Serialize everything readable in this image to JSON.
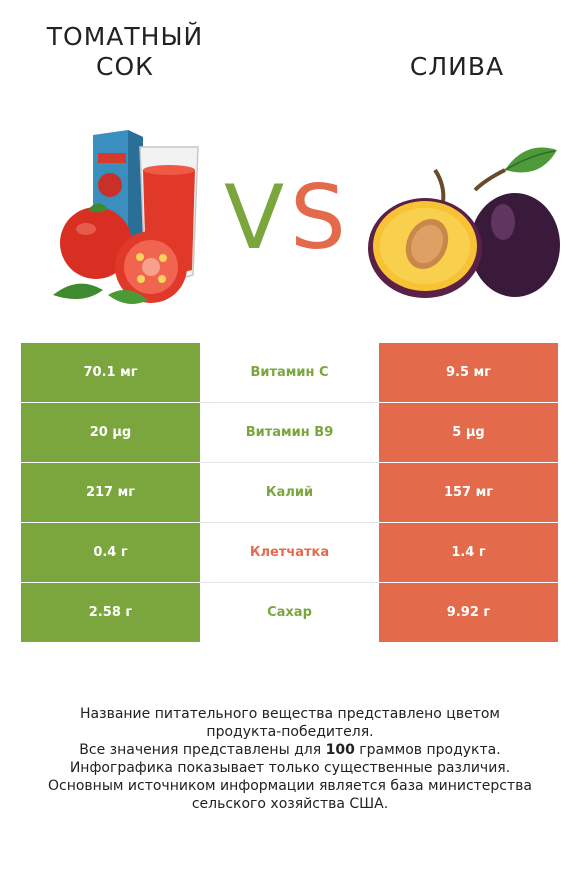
{
  "header": {
    "left_title_line1": "ТОМАТНЫЙ",
    "left_title_line2": "СОК",
    "right_title": "СЛИВА",
    "vs_text": "VS",
    "vs_colors": {
      "v": "#7aa63d",
      "s": "#e36b4c"
    }
  },
  "colors": {
    "winner_left": "#7aa63d",
    "winner_right": "#e36b4c"
  },
  "rows": [
    {
      "left": "70.1 мг",
      "name": "Витамин C",
      "right": "9.5 мг",
      "winner": "left"
    },
    {
      "left": "20 µg",
      "name": "Витамин B9",
      "right": "5 µg",
      "winner": "left"
    },
    {
      "left": "217 мг",
      "name": "Калий",
      "right": "157 мг",
      "winner": "left"
    },
    {
      "left": "0.4 г",
      "name": "Клетчатка",
      "right": "1.4 г",
      "winner": "right"
    },
    {
      "left": "2.58 г",
      "name": "Сахар",
      "right": "9.92 г",
      "winner": "left"
    }
  ],
  "footnote": {
    "line1": "Название питательного вещества представлено цветом",
    "line2": "продукта-победителя.",
    "line3_prefix": "Все значения представлены для ",
    "line3_bold": "100",
    "line3_suffix": " граммов продукта.",
    "line4": "Инфографика показывает только существенные различия.",
    "line5": "Основным источником информации является база министерства",
    "line6": "сельского хозяйства США."
  },
  "icons": [
    "tomato-juice-illustration",
    "plum-illustration"
  ]
}
